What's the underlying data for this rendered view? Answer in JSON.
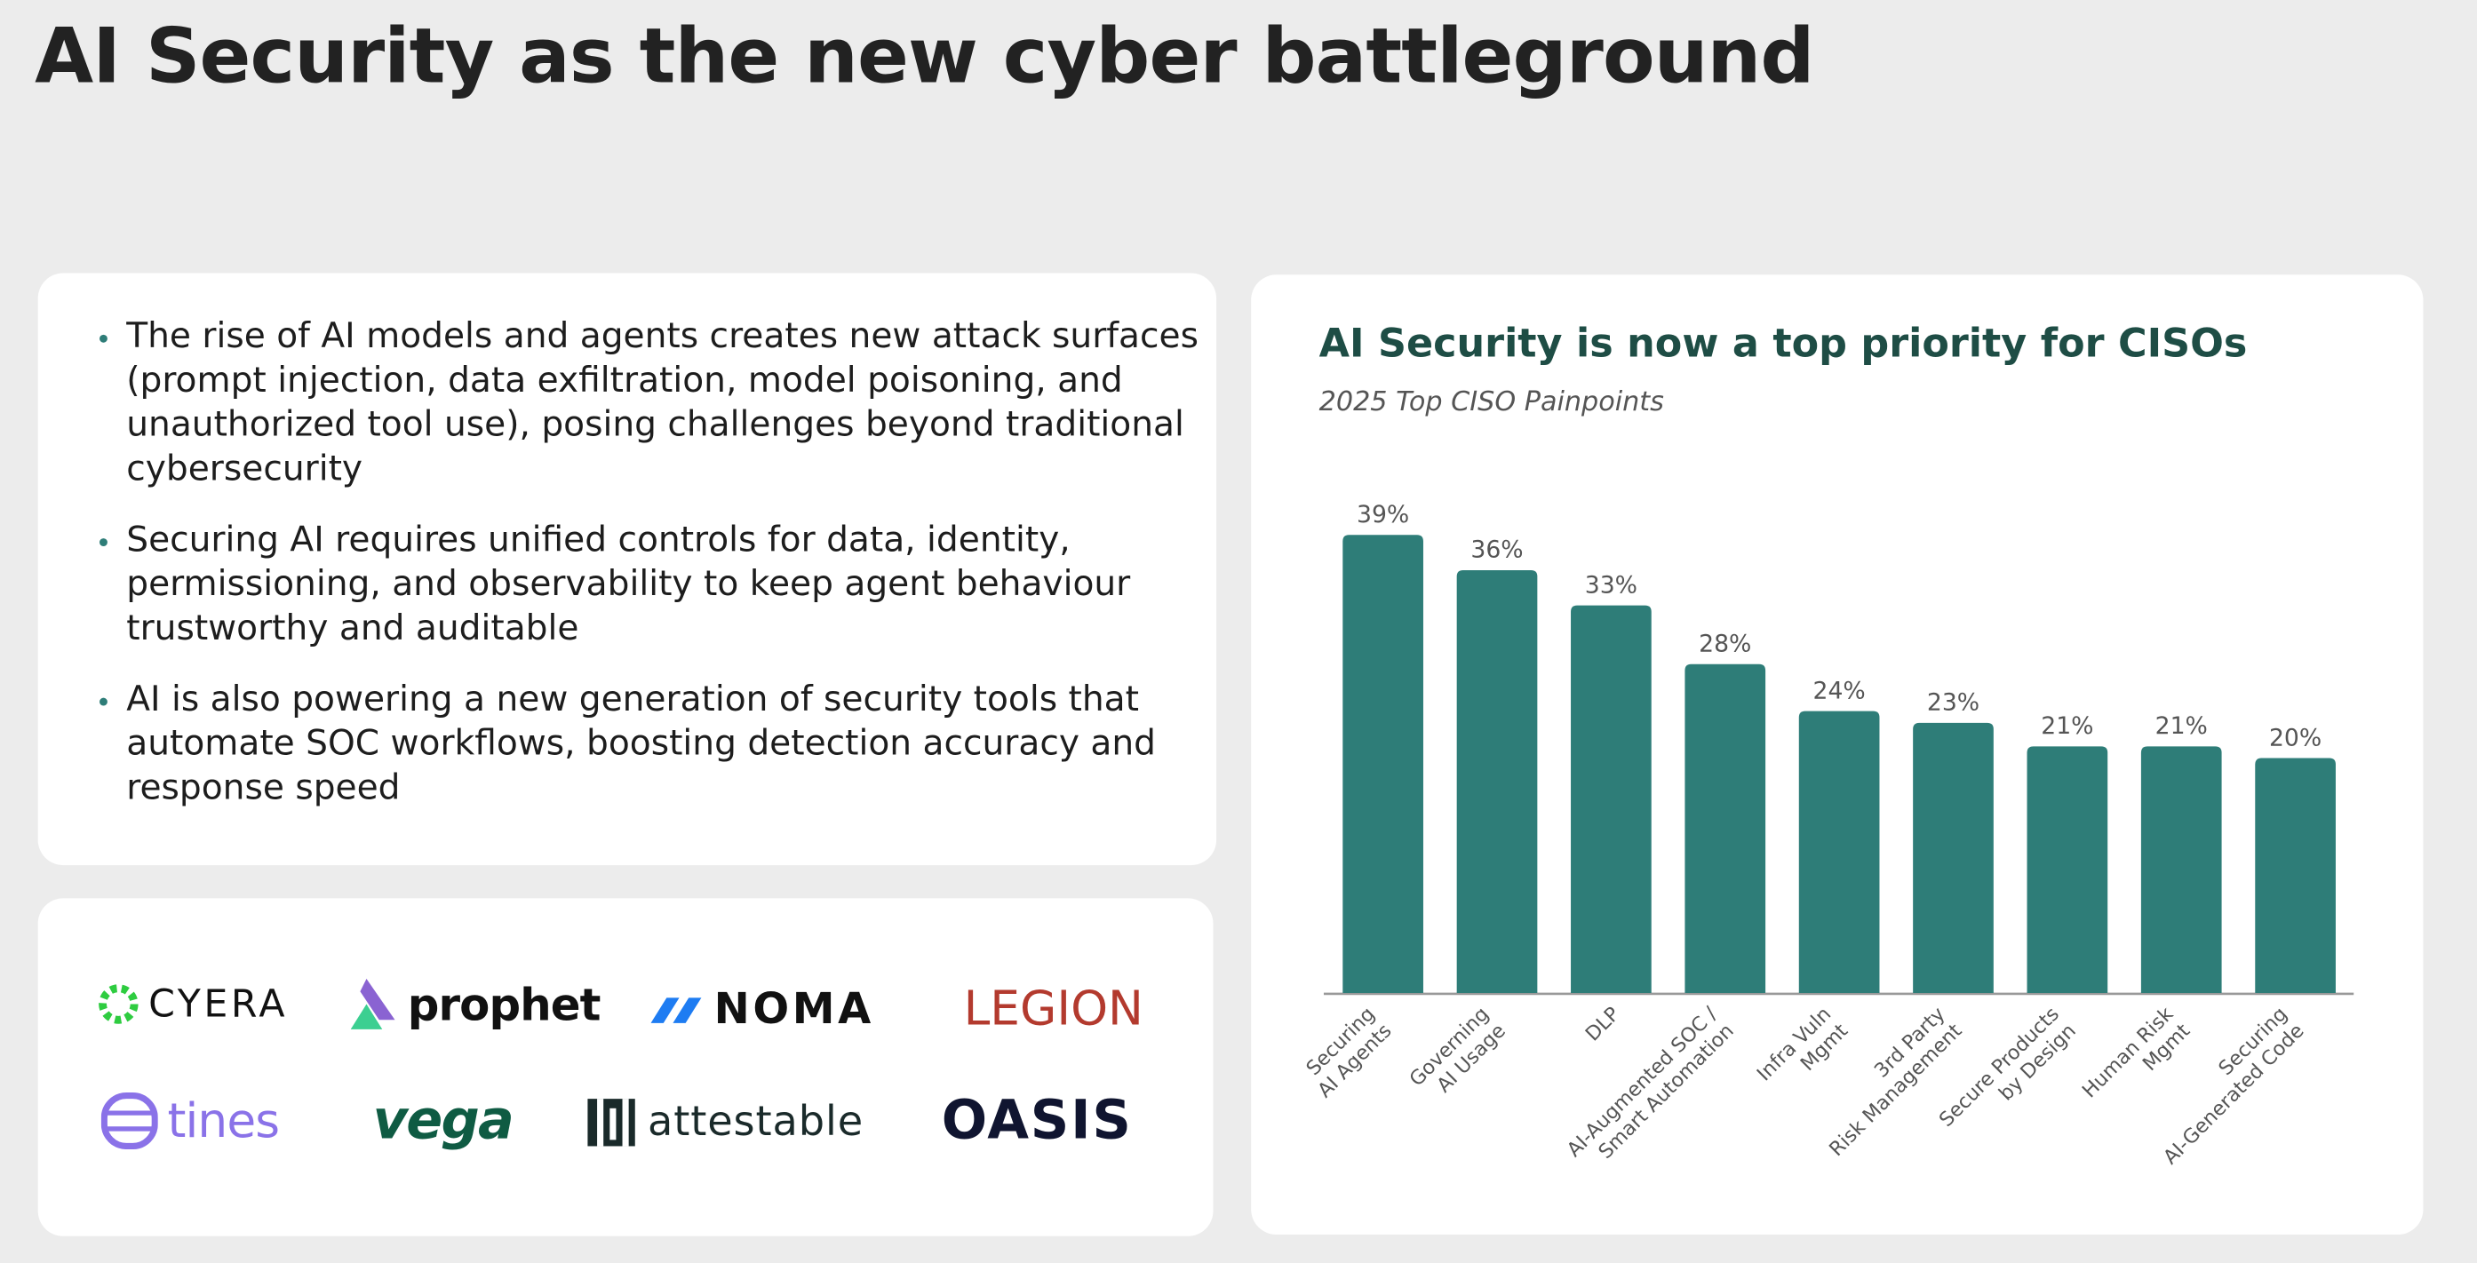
{
  "header": {
    "title": "AI Security as the new cyber battleground"
  },
  "bullets": [
    "The rise of AI models and agents creates new attack surfaces (prompt injection, data exfiltration, model poisoning, and unauthorized tool use), posing challenges beyond traditional cybersecurity",
    "Securing AI requires unified controls for data, identity, permissioning, and observability to keep agent behaviour trustworthy and auditable",
    "AI is also powering a new generation of security tools that automate SOC workflows, boosting detection accuracy and response speed"
  ],
  "logos": [
    "CYERA",
    "prophet",
    "NOMA",
    "LEGION",
    "tines",
    "vega",
    "attestable",
    "OASIS"
  ],
  "chart_data": {
    "type": "bar",
    "title": "AI Security is now a top priority for CISOs",
    "subtitle": "2025 Top CISO Painpoints",
    "categories": [
      "Securing\nAI Agents",
      "Governing\nAI Usage",
      "DLP",
      "AI-Augmented SOC /\nSmart Automation",
      "Infra Vuln\nMgmt",
      "3rd Party\nRisk Management",
      "Secure Products\nby Design",
      "Human Risk\nMgmt",
      "Securing\nAI-Generated Code"
    ],
    "values": [
      39,
      36,
      33,
      28,
      24,
      23,
      21,
      21,
      20
    ],
    "value_labels": [
      "39%",
      "36%",
      "33%",
      "28%",
      "24%",
      "23%",
      "21%",
      "21%",
      "20%"
    ],
    "color": "#2e7d78"
  }
}
